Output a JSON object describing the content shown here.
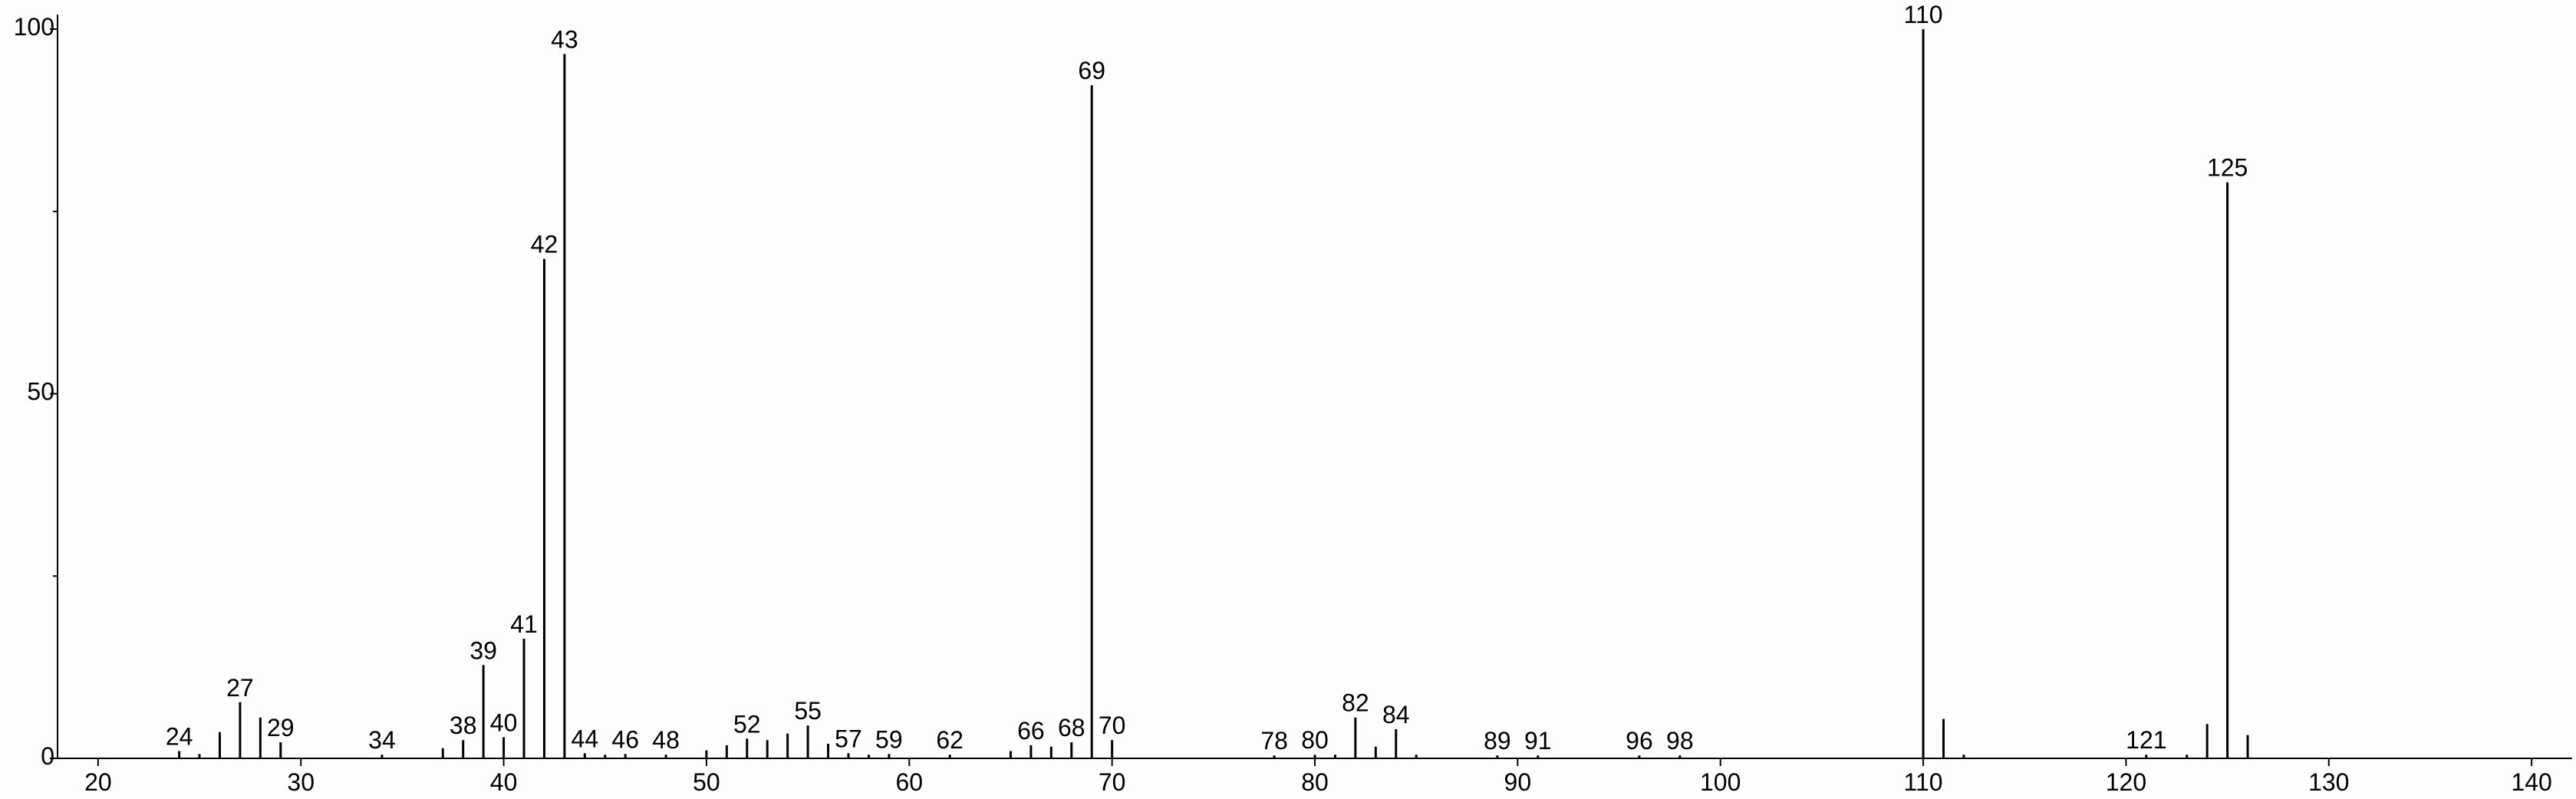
{
  "chart_data": {
    "type": "spectrum",
    "x": [
      24,
      25,
      26,
      27,
      28,
      29,
      34,
      37,
      38,
      39,
      40,
      41,
      42,
      43,
      44,
      45,
      46,
      48,
      50,
      51,
      52,
      53,
      54,
      55,
      56,
      57,
      58,
      59,
      62,
      65,
      66,
      67,
      68,
      69,
      70,
      78,
      80,
      81,
      82,
      83,
      84,
      85,
      89,
      91,
      96,
      98,
      110,
      111,
      112,
      121,
      123,
      124,
      125,
      126
    ],
    "values": [
      1,
      0.6,
      3.6,
      7.7,
      5.6,
      2.2,
      0.5,
      1.4,
      2.5,
      12.8,
      2.9,
      16.4,
      68.5,
      96.6,
      0.7,
      0.5,
      0.6,
      0.5,
      1.1,
      1.8,
      2.7,
      2.5,
      3.4,
      4.5,
      2,
      0.7,
      0.5,
      0.6,
      0.5,
      1,
      1.8,
      1.6,
      2.2,
      92.3,
      2.5,
      0.4,
      0.5,
      0.5,
      5.6,
      1.6,
      4,
      0.5,
      0.4,
      0.4,
      0.4,
      0.4,
      100,
      5.4,
      0.5,
      0.5,
      0.5,
      4.7,
      79,
      3.2
    ],
    "labels": [
      "24",
      null,
      null,
      "27",
      null,
      "29",
      "34",
      null,
      "38",
      "39",
      "40",
      "41",
      "42",
      "43",
      "44",
      null,
      "46",
      "48",
      null,
      null,
      "52",
      null,
      null,
      "55",
      null,
      "57",
      null,
      "59",
      "62",
      null,
      "66",
      null,
      "68",
      "69",
      "70",
      "78",
      "80",
      null,
      "82",
      null,
      "84",
      null,
      "89",
      "91",
      "96",
      "98",
      "110",
      null,
      null,
      "121",
      null,
      null,
      "125",
      null
    ],
    "color": "#000000",
    "xlim": [
      18,
      142
    ],
    "xticks": [
      20,
      30,
      40,
      50,
      60,
      70,
      80,
      90,
      100,
      110,
      120,
      130,
      140
    ],
    "ylim": [
      0,
      102
    ],
    "yticks": [
      0,
      50,
      100
    ],
    "yminor_ticks": [
      25,
      75
    ]
  }
}
